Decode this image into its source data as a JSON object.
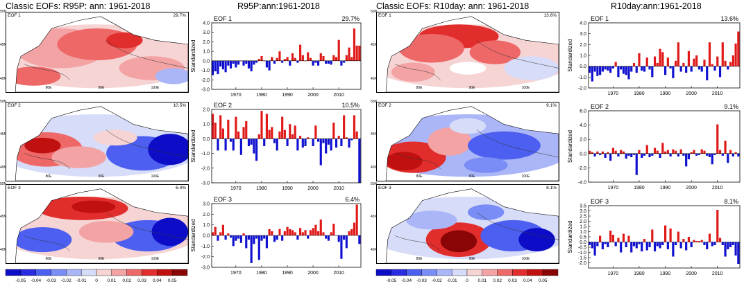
{
  "titles": {
    "r95p_maps": "Classic EOFs: R95P: ann: 1961-2018",
    "r95p_ts": "R95P:ann:1961-2018",
    "r10_maps": "Classic EOFs: R10day: ann: 1961-2018",
    "r10_ts": "R10day:ann:1961-2018"
  },
  "map_labels": {
    "lat": [
      "50N",
      "45N",
      "40N"
    ],
    "lon": [
      "80E",
      "90E",
      "100E"
    ]
  },
  "colorbar": {
    "labels": [
      "-0.05",
      "-0.04",
      "-0.03",
      "-0.02",
      "-0.01",
      "0",
      "0.01",
      "0.02",
      "0.03",
      "0.04",
      "0.05"
    ],
    "colors": [
      "#0d0dc7",
      "#2a2ae0",
      "#4d5ff0",
      "#7a8cf5",
      "#aab6f7",
      "#d7dcf8",
      "#f6d4d4",
      "#f3a3a3",
      "#ee6868",
      "#e22d2d",
      "#c01010",
      "#8a0505"
    ]
  },
  "maps": [
    {
      "label": "EOF 1",
      "pct": "29.7%"
    },
    {
      "label": "EOF 2",
      "pct": "10.5%"
    },
    {
      "label": "EOF 3",
      "pct": "6.4%"
    },
    {
      "label": "EOF 1",
      "pct": "13.6%"
    },
    {
      "label": "EOF 2",
      "pct": "9.1%"
    },
    {
      "label": "EOF 3",
      "pct": "8.1%"
    }
  ],
  "chart_data": [
    {
      "type": "bar",
      "title": "EOF 1",
      "pct": "29.7%",
      "ylabel": "Standardized",
      "ylim": [
        -3,
        4
      ],
      "yticks": [
        "-3.0",
        "-2.0",
        "-1.0",
        "0.0",
        "1.0",
        "2.0",
        "3.0",
        "4.0"
      ],
      "xticks": [
        "1970",
        "1980",
        "1990",
        "2000",
        "2010"
      ],
      "x_start": 1961,
      "values": [
        -1.5,
        -1.1,
        -1.4,
        -0.6,
        -0.9,
        -1.2,
        -0.5,
        -0.8,
        -0.3,
        -0.7,
        -0.4,
        0.0,
        -0.5,
        -0.3,
        -0.8,
        -1.1,
        -0.4,
        -0.2,
        0.2,
        0.5,
        0.0,
        -0.7,
        -1.0,
        0.4,
        -0.3,
        0.3,
        1.0,
        -0.2,
        0.2,
        0.4,
        -0.5,
        0.8,
        0.3,
        -0.2,
        1.7,
        0.6,
        0.0,
        0.9,
        0.3,
        -0.5,
        -0.2,
        -0.5,
        0.8,
        0.5,
        -0.3,
        -0.3,
        -0.4,
        0.6,
        0.4,
        2.2,
        -0.5,
        -0.2,
        0.6,
        1.4,
        0.4,
        3.4,
        1.6,
        1.6
      ]
    },
    {
      "type": "bar",
      "title": "EOF 2",
      "pct": "10.5%",
      "ylabel": "Standardized",
      "ylim": [
        -3,
        2
      ],
      "yticks": [
        "-3.0",
        "-2.0",
        "-1.0",
        "0.0",
        "1.0",
        "2.0"
      ],
      "xticks": [
        "1970",
        "1980",
        "1990",
        "2000",
        "2010"
      ],
      "x_start": 1961,
      "values": [
        1.7,
        1.1,
        -0.8,
        1.6,
        0.7,
        -0.8,
        1.3,
        -0.2,
        -0.8,
        1.5,
        0.5,
        -1.1,
        0.8,
        1.2,
        -0.5,
        -0.4,
        -1.0,
        -1.5,
        0.3,
        1.9,
        -0.5,
        1.7,
        0.6,
        0.8,
        -0.3,
        -0.8,
        0.5,
        1.5,
        0.6,
        -0.5,
        1.0,
        0.3,
        0.9,
        -0.8,
        0.2,
        -0.6,
        -0.5,
        0.1,
        0.0,
        -0.5,
        0.9,
        -0.2,
        -1.8,
        -0.3,
        -1.0,
        -0.4,
        -0.8,
        1.1,
        -0.6,
        0.2,
        -0.5,
        1.6,
        0.1,
        -0.6,
        -0.1,
        1.6,
        0.5,
        -3.0
      ]
    },
    {
      "type": "bar",
      "title": "EOF 3",
      "pct": "6.4%",
      "ylabel": "Standardized",
      "ylim": [
        -3,
        3
      ],
      "yticks": [
        "-3.0",
        "-2.0",
        "-1.0",
        "0.0",
        "1.0",
        "2.0",
        "3.0"
      ],
      "xticks": [
        "1970",
        "1980",
        "1990",
        "2000",
        "2010"
      ],
      "x_start": 1961,
      "values": [
        0.3,
        0.8,
        -0.5,
        0.3,
        1.0,
        -0.4,
        0.2,
        -0.2,
        -1.0,
        -0.5,
        -0.3,
        -0.7,
        0.2,
        -1.2,
        -0.4,
        -2.6,
        -0.8,
        -0.3,
        -2.3,
        -0.5,
        -0.3,
        -1.2,
        0.6,
        0.4,
        -0.6,
        -0.4,
        0.6,
        -0.5,
        0.4,
        0.8,
        0.6,
        0.5,
        0.3,
        -0.4,
        0.7,
        0.3,
        0.5,
        -0.3,
        0.5,
        0.7,
        1.0,
        0.4,
        1.5,
        0.3,
        -0.3,
        -0.5,
        0.3,
        1.1,
        0.0,
        -0.6,
        -2.2,
        -0.4,
        -1.2,
        0.4,
        0.6,
        1.2,
        2.9,
        -0.8
      ]
    },
    {
      "type": "bar",
      "title": "EOF 1",
      "pct": "13.6%",
      "ylabel": "Standardized",
      "ylim": [
        -2,
        4
      ],
      "yticks": [
        "-2.0",
        "-1.0",
        "0.0",
        "1.0",
        "2.0",
        "3.0",
        "4.0"
      ],
      "xticks": [
        "1970",
        "1980",
        "1990",
        "2000",
        "2010"
      ],
      "x_start": 1961,
      "values": [
        -0.6,
        -1.4,
        -0.5,
        -0.9,
        -0.8,
        -0.5,
        -0.3,
        -0.4,
        -0.6,
        -0.2,
        0.4,
        -1.0,
        -0.3,
        -0.7,
        -0.8,
        -1.2,
        -0.5,
        0.3,
        -0.6,
        1.2,
        -0.4,
        -0.5,
        0.8,
        -0.3,
        -1.0,
        0.9,
        0.3,
        1.6,
        1.3,
        -0.8,
        0.8,
        -0.2,
        -1.1,
        0.5,
        2.2,
        -0.5,
        0.3,
        -0.6,
        1.4,
        -0.5,
        0.7,
        1.0,
        -0.3,
        -0.5,
        0.6,
        -1.3,
        2.2,
        0.2,
        -0.4,
        0.9,
        -1.0,
        2.2,
        0.5,
        -0.3,
        0.4,
        1.0,
        2.1,
        3.2
      ]
    },
    {
      "type": "bar",
      "title": "EOF 2",
      "pct": "9.1%",
      "ylabel": "Standardized",
      "ylim": [
        -4,
        6
      ],
      "yticks": [
        "-4.0",
        "-2.0",
        "0.0",
        "2.0",
        "4.0",
        "6.0"
      ],
      "xticks": [
        "1970",
        "1980",
        "1990",
        "2000",
        "2010"
      ],
      "x_start": 1961,
      "values": [
        0.4,
        0.2,
        -0.4,
        0.3,
        -0.2,
        0.3,
        -0.6,
        0.2,
        -1.0,
        0.8,
        0.4,
        -0.4,
        0.5,
        0.3,
        -0.7,
        -0.3,
        -0.5,
        -0.2,
        -3.0,
        0.5,
        -0.6,
        -0.3,
        1.2,
        -0.5,
        -0.3,
        0.8,
        0.4,
        -0.6,
        1.5,
        0.3,
        0.5,
        -0.4,
        0.6,
        0.4,
        -0.4,
        0.6,
        -0.3,
        -1.8,
        -0.8,
        0.2,
        0.5,
        -0.3,
        -0.2,
        0.6,
        0.4,
        -0.3,
        -0.5,
        -1.5,
        -0.2,
        4.1,
        0.5,
        -0.3,
        1.8,
        -1.3,
        0.5,
        -0.4,
        0.2,
        -0.4
      ]
    },
    {
      "type": "bar",
      "title": "EOF 3",
      "pct": "8.1%",
      "ylabel": "Standardized",
      "ylim": [
        -2.5,
        3.5
      ],
      "yticks": [
        "-2.0",
        "-1.5",
        "-1.0",
        "-0.5",
        "0.0",
        "0.5",
        "1.0",
        "1.5",
        "2.0",
        "2.5",
        "3.0",
        "3.5"
      ],
      "xticks": [
        "1970",
        "1980",
        "1990",
        "2000",
        "2010"
      ],
      "x_start": 1961,
      "values": [
        -0.3,
        -0.6,
        -1.3,
        -0.4,
        0.6,
        -0.7,
        -0.2,
        -0.5,
        1.1,
        0.7,
        -0.4,
        0.4,
        -1.0,
        0.8,
        -0.5,
        0.6,
        -1.0,
        -0.4,
        -0.6,
        -0.2,
        -0.9,
        0.3,
        -0.8,
        -0.5,
        1.2,
        -0.9,
        -0.4,
        -0.6,
        -0.3,
        1.6,
        -0.7,
        1.3,
        -1.4,
        -0.3,
        1.0,
        -0.6,
        0.3,
        -0.8,
        0.5,
        -0.5,
        0.2,
        0.1,
        0.1,
        0.2,
        -0.3,
        -0.7,
        0.8,
        -0.4,
        -0.3,
        3.1,
        0.4,
        -0.3,
        -1.4,
        -0.7,
        -0.5,
        -0.3,
        -1.3,
        -2.1
      ]
    }
  ]
}
